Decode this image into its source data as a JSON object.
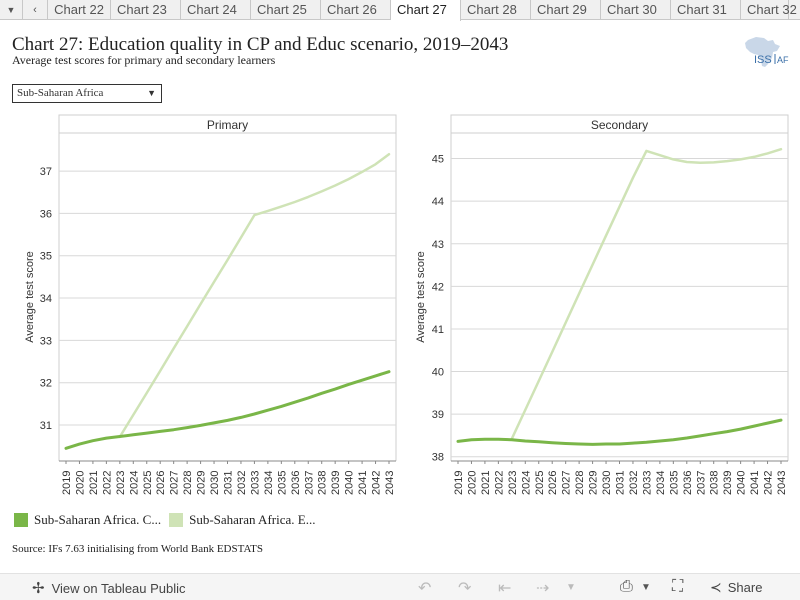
{
  "tabs": {
    "scroll_left": "‹",
    "menu": "▼",
    "items": [
      "Chart 22",
      "Chart 23",
      "Chart 24",
      "Chart 25",
      "Chart 26",
      "Chart 27",
      "Chart 28",
      "Chart 29",
      "Chart 30",
      "Chart 31",
      "Chart 32"
    ],
    "active_index": 5
  },
  "header": {
    "title": "Chart 27: Education quality in CP and Educ scenario, 2019–2043",
    "subtitle": "Average test scores for primary and secondary learners",
    "logo_text": "ISS",
    "logo_suffix": "AF"
  },
  "filter": {
    "selected": "Sub-Saharan Africa",
    "caret": "▼"
  },
  "colors": {
    "cp": "#7ab648",
    "educ": "#cfe3b6",
    "grid": "#d8d8d8",
    "axis": "#888888"
  },
  "chart_data": [
    {
      "type": "line",
      "title": "Primary",
      "ylabel": "Average test score",
      "x": [
        2019,
        2020,
        2021,
        2022,
        2023,
        2024,
        2025,
        2026,
        2027,
        2028,
        2029,
        2030,
        2031,
        2032,
        2033,
        2034,
        2035,
        2036,
        2037,
        2038,
        2039,
        2040,
        2041,
        2042,
        2043
      ],
      "ylim": [
        30.15,
        37.9
      ],
      "yticks": [
        31,
        32,
        33,
        34,
        35,
        36,
        37
      ],
      "series": [
        {
          "name": "Sub-Saharan Africa. C...",
          "color_key": "cp",
          "values": [
            30.45,
            30.55,
            30.63,
            30.69,
            30.73,
            30.77,
            30.81,
            30.85,
            30.89,
            30.94,
            30.99,
            31.05,
            31.11,
            31.18,
            31.26,
            31.35,
            31.44,
            31.54,
            31.64,
            31.75,
            31.85,
            31.96,
            32.06,
            32.16,
            32.26
          ]
        },
        {
          "name": "Sub-Saharan Africa. E...",
          "color_key": "educ",
          "values": [
            null,
            null,
            null,
            null,
            30.72,
            31.24,
            31.76,
            32.28,
            32.81,
            33.33,
            33.86,
            34.38,
            34.9,
            35.43,
            35.96,
            36.06,
            36.16,
            36.27,
            36.39,
            36.52,
            36.66,
            36.81,
            36.98,
            37.16,
            37.4
          ]
        }
      ]
    },
    {
      "type": "line",
      "title": "Secondary",
      "ylabel": "Average test score",
      "x": [
        2019,
        2020,
        2021,
        2022,
        2023,
        2024,
        2025,
        2026,
        2027,
        2028,
        2029,
        2030,
        2031,
        2032,
        2033,
        2034,
        2035,
        2036,
        2037,
        2038,
        2039,
        2040,
        2041,
        2042,
        2043
      ],
      "ylim": [
        37.9,
        45.6
      ],
      "yticks": [
        38,
        39,
        40,
        41,
        42,
        43,
        44,
        45
      ],
      "series": [
        {
          "name": "Sub-Saharan Africa. C...",
          "color_key": "cp",
          "values": [
            38.36,
            38.4,
            38.41,
            38.41,
            38.4,
            38.37,
            38.35,
            38.33,
            38.31,
            38.3,
            38.29,
            38.3,
            38.3,
            38.32,
            38.34,
            38.37,
            38.4,
            38.44,
            38.49,
            38.54,
            38.59,
            38.65,
            38.72,
            38.79,
            38.86
          ]
        },
        {
          "name": "Sub-Saharan Africa. E...",
          "color_key": "educ",
          "values": [
            null,
            null,
            null,
            null,
            38.42,
            39.1,
            39.78,
            40.46,
            41.15,
            41.83,
            42.51,
            43.19,
            43.87,
            44.55,
            45.18,
            45.08,
            44.98,
            44.92,
            44.9,
            44.91,
            44.94,
            44.98,
            45.04,
            45.12,
            45.22
          ]
        }
      ]
    }
  ],
  "legend": [
    {
      "label": "Sub-Saharan Africa. C...",
      "color_key": "cp"
    },
    {
      "label": "Sub-Saharan Africa. E...",
      "color_key": "educ"
    }
  ],
  "source": "Source: IFs 7.63 initialising from World Bank EDSTATS",
  "footer": {
    "view_label": "View on Tableau Public",
    "share_label": "Share"
  }
}
